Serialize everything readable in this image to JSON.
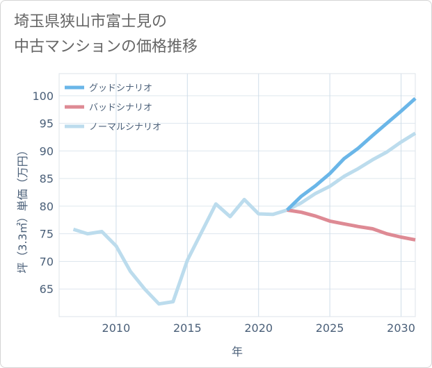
{
  "title": {
    "line1": "埼玉県狭山市富士見の",
    "line2": "中古マンションの価格推移"
  },
  "chart_data": {
    "type": "line",
    "xlabel": "年",
    "ylabel": "坪（3.3㎡）単価（万円）",
    "xlim": [
      2006,
      2031
    ],
    "ylim": [
      60,
      104
    ],
    "x_ticks": [
      2010,
      2015,
      2020,
      2025,
      2030
    ],
    "y_ticks": [
      65,
      70,
      75,
      80,
      85,
      90,
      95,
      100
    ],
    "grid": true,
    "legend_position": "top-left",
    "series": [
      {
        "name": "グッドシナリオ",
        "color": "#6ab6e8",
        "x": [
          2022,
          2023,
          2024,
          2025,
          2026,
          2027,
          2028,
          2029,
          2030,
          2031
        ],
        "y": [
          79.3,
          81.8,
          83.7,
          85.9,
          88.6,
          90.5,
          92.8,
          95.0,
          97.2,
          99.5
        ]
      },
      {
        "name": "バッドシナリオ",
        "color": "#de8a94",
        "x": [
          2022,
          2023,
          2024,
          2025,
          2026,
          2027,
          2028,
          2029,
          2030,
          2031
        ],
        "y": [
          79.3,
          78.9,
          78.2,
          77.3,
          76.8,
          76.3,
          75.9,
          75.0,
          74.4,
          73.9
        ]
      },
      {
        "name": "ノーマルシナリオ",
        "color": "#bcdced",
        "x": [
          2007,
          2008,
          2009,
          2010,
          2011,
          2012,
          2013,
          2014,
          2015,
          2016,
          2017,
          2018,
          2019,
          2020,
          2021,
          2022,
          2023,
          2024,
          2025,
          2026,
          2027,
          2028,
          2029,
          2030,
          2031
        ],
        "y": [
          75.8,
          75.0,
          75.4,
          72.8,
          68.2,
          65.0,
          62.3,
          62.7,
          70.2,
          75.3,
          80.4,
          78.1,
          81.2,
          78.6,
          78.5,
          79.3,
          80.6,
          82.3,
          83.6,
          85.4,
          86.8,
          88.4,
          89.8,
          91.6,
          93.2
        ]
      }
    ]
  }
}
